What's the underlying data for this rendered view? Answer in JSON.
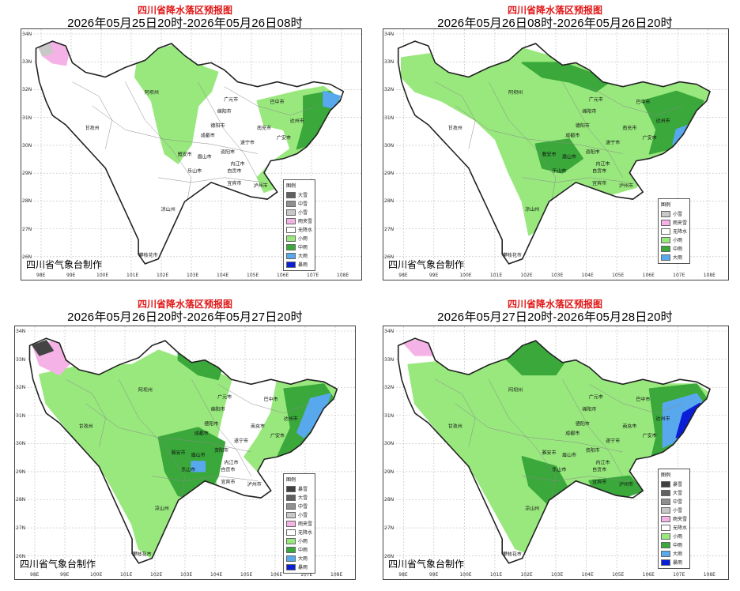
{
  "colors": {
    "light_rain": "#99e87e",
    "moderate_rain": "#3aa83a",
    "heavy_rain": "#58a8ee",
    "rainstorm": "#0a1ed8",
    "rain_snow": "#f5b2e6",
    "light_snow": "#c8c8c8",
    "moderate_snow": "#a0a0a0",
    "heavy_snow": "#707070",
    "blizzard": "#444444",
    "title_red": "#e01818"
  },
  "lat_labels": [
    "34N",
    "33N",
    "32N",
    "31N",
    "30N",
    "29N",
    "28N",
    "27N",
    "26N"
  ],
  "lon_labels": [
    "98E",
    "99E",
    "100E",
    "101E",
    "102E",
    "103E",
    "104E",
    "105E",
    "106E",
    "107E",
    "108E"
  ],
  "panels": [
    {
      "title": "四川省降水落区预报图",
      "period": "2026年05月25日20时-2026年05月26日08时",
      "credit": "四川省气象台制作",
      "legend_title": "图例",
      "legend": [
        {
          "label": "大雪",
          "color": "#606060"
        },
        {
          "label": "中雪",
          "color": "#909090"
        },
        {
          "label": "小雪",
          "color": "#c8c8c8"
        },
        {
          "label": "雨夹雪",
          "color": "#f5b2e6"
        },
        {
          "label": "无降水",
          "color": "#ffffff"
        },
        {
          "label": "小雨",
          "color": "#99e87e"
        },
        {
          "label": "中雨",
          "color": "#3aa83a"
        },
        {
          "label": "大雨",
          "color": "#58a8ee"
        },
        {
          "label": "暴雨",
          "color": "#0a1ed8"
        }
      ],
      "cities": [
        "甘孜州",
        "阿坝州",
        "广元市",
        "巴中市",
        "达州市",
        "南充市",
        "绵阳市",
        "德阳市",
        "成都市",
        "遂宁市",
        "广安市",
        "眉山市",
        "雅安市",
        "资阳市",
        "内江市",
        "乐山市",
        "自贡市",
        "宜宾市",
        "泸州市",
        "凉山州",
        "攀枝花市"
      ]
    },
    {
      "title": "四川省降水落区预报图",
      "period": "2026年05月26日08时-2026年05月26日20时",
      "credit": "四川省气象台制作",
      "legend_title": "图例",
      "legend": [
        {
          "label": "小雪",
          "color": "#c8c8c8"
        },
        {
          "label": "雨夹雪",
          "color": "#f5b2e6"
        },
        {
          "label": "无降水",
          "color": "#ffffff"
        },
        {
          "label": "小雨",
          "color": "#99e87e"
        },
        {
          "label": "中雨",
          "color": "#3aa83a"
        },
        {
          "label": "大雨",
          "color": "#58a8ee"
        }
      ],
      "cities": [
        "甘孜州",
        "阿坝州",
        "广元市",
        "巴中市",
        "达州市",
        "南充市",
        "绵阳市",
        "德阳市",
        "成都市",
        "遂宁市",
        "广安市",
        "眉山市",
        "雅安市",
        "资阳市",
        "内江市",
        "乐山市",
        "自贡市",
        "宜宾市",
        "泸州市",
        "凉山州",
        "攀枝花市"
      ]
    },
    {
      "title": "四川省降水落区预报图",
      "period": "2026年05月26日20时-2026年05月27日20时",
      "credit": "四川省气象台制作",
      "legend_title": "图例",
      "legend": [
        {
          "label": "暴雪",
          "color": "#404040"
        },
        {
          "label": "大雪",
          "color": "#606060"
        },
        {
          "label": "中雪",
          "color": "#909090"
        },
        {
          "label": "小雪",
          "color": "#c8c8c8"
        },
        {
          "label": "雨夹雪",
          "color": "#f5b2e6"
        },
        {
          "label": "无降水",
          "color": "#ffffff"
        },
        {
          "label": "小雨",
          "color": "#99e87e"
        },
        {
          "label": "中雨",
          "color": "#3aa83a"
        },
        {
          "label": "大雨",
          "color": "#58a8ee"
        },
        {
          "label": "暴雨",
          "color": "#0a1ed8"
        }
      ],
      "cities": [
        "甘孜州",
        "阿坝州",
        "广元市",
        "巴中市",
        "达州市",
        "南充市",
        "绵阳市",
        "德阳市",
        "成都市",
        "遂宁市",
        "广安市",
        "眉山市",
        "雅安市",
        "资阳市",
        "内江市",
        "乐山市",
        "自贡市",
        "宜宾市",
        "泸州市",
        "凉山州",
        "攀枝花市"
      ]
    },
    {
      "title": "四川省降水落区预报图",
      "period": "2026年05月27日20时-2026年05月28日20时",
      "credit": "四川省气象台制作",
      "legend_title": "图例",
      "legend": [
        {
          "label": "暴雪",
          "color": "#404040"
        },
        {
          "label": "大雪",
          "color": "#606060"
        },
        {
          "label": "中雪",
          "color": "#909090"
        },
        {
          "label": "小雪",
          "color": "#c8c8c8"
        },
        {
          "label": "雨夹雪",
          "color": "#f5b2e6"
        },
        {
          "label": "无降水",
          "color": "#ffffff"
        },
        {
          "label": "小雨",
          "color": "#99e87e"
        },
        {
          "label": "中雨",
          "color": "#3aa83a"
        },
        {
          "label": "大雨",
          "color": "#58a8ee"
        },
        {
          "label": "暴雨",
          "color": "#0a1ed8"
        }
      ],
      "cities": [
        "甘孜州",
        "阿坝州",
        "广元市",
        "巴中市",
        "达州市",
        "南充市",
        "绵阳市",
        "德阳市",
        "成都市",
        "遂宁市",
        "广安市",
        "眉山市",
        "雅安市",
        "资阳市",
        "内江市",
        "乐山市",
        "自贡市",
        "宜宾市",
        "泸州市",
        "凉山州",
        "攀枝花市"
      ]
    }
  ]
}
